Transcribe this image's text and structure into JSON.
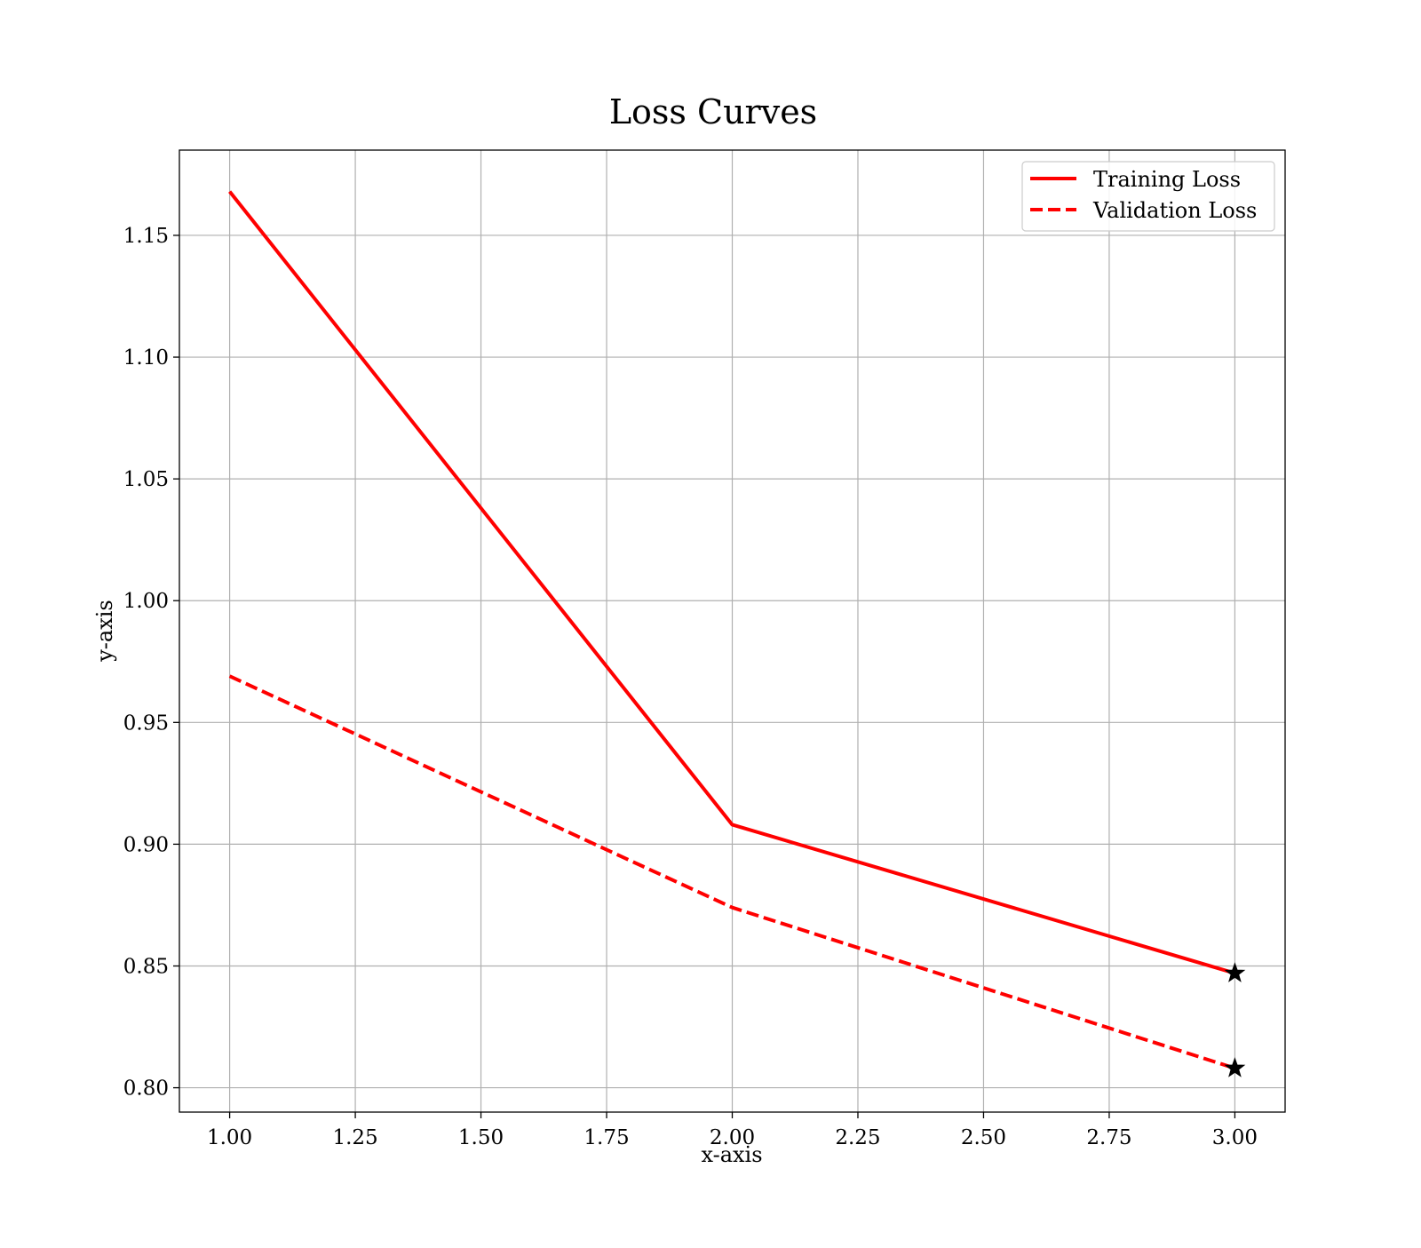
{
  "chart_data": {
    "type": "line",
    "title": "Loss Curves",
    "xlabel": "x-axis",
    "ylabel": "y-axis",
    "xlim": [
      0.9,
      3.1
    ],
    "ylim": [
      0.79,
      1.185
    ],
    "xticks": [
      1.0,
      1.25,
      1.5,
      1.75,
      2.0,
      2.25,
      2.5,
      2.75,
      3.0
    ],
    "xtick_labels": [
      "1.00",
      "1.25",
      "1.50",
      "1.75",
      "2.00",
      "2.25",
      "2.50",
      "2.75",
      "3.00"
    ],
    "yticks": [
      0.8,
      0.85,
      0.9,
      0.95,
      1.0,
      1.05,
      1.1,
      1.15
    ],
    "ytick_labels": [
      "0.80",
      "0.85",
      "0.90",
      "0.95",
      "1.00",
      "1.05",
      "1.10",
      "1.15"
    ],
    "grid": true,
    "legend_position": "top-right",
    "x": [
      1,
      2,
      3
    ],
    "series": [
      {
        "name": "Training Loss",
        "values": [
          1.168,
          0.908,
          0.847
        ],
        "color": "#ff0000",
        "style": "solid"
      },
      {
        "name": "Validation Loss",
        "values": [
          0.969,
          0.874,
          0.808
        ],
        "color": "#ff0000",
        "style": "dashed"
      }
    ],
    "markers": [
      {
        "x": 3,
        "y": 0.847,
        "shape": "star",
        "color": "#000000"
      },
      {
        "x": 3,
        "y": 0.808,
        "shape": "star",
        "color": "#000000"
      }
    ]
  }
}
